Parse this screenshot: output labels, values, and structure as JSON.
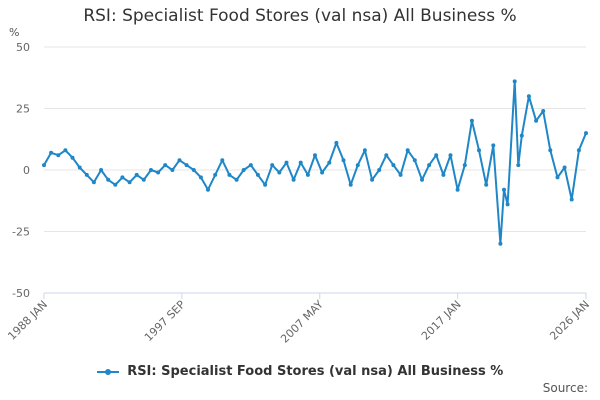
{
  "chart_data": {
    "type": "line",
    "title": "RSI: Specialist Food Stores (val nsa) All Business %",
    "ylabel": "%",
    "xlabel": "",
    "ylim": [
      -50,
      50
    ],
    "yticks": [
      50,
      25,
      0,
      -25,
      -50
    ],
    "xticks": [
      "1988 JAN",
      "1997 SEP",
      "2007 MAY",
      "2017 JAN",
      "2026 JAN"
    ],
    "xlim": [
      "1988 JAN",
      "2026 JAN"
    ],
    "grid": true,
    "legend_position": "bottom",
    "colors": {
      "series": "#1f87c7",
      "grid": "#e6e6e6",
      "axis": "#ccd6eb"
    },
    "series": [
      {
        "name": "RSI: Specialist Food Stores (val nsa) All Business %",
        "x": [
          "1988 JAN",
          "1988 JUL",
          "1989 JAN",
          "1989 JUL",
          "1990 JAN",
          "1990 JUL",
          "1991 JAN",
          "1991 JUL",
          "1992 JAN",
          "1992 JUL",
          "1993 JAN",
          "1993 JUL",
          "1994 JAN",
          "1994 JUL",
          "1995 JAN",
          "1995 JUL",
          "1996 JAN",
          "1996 JUL",
          "1997 JAN",
          "1997 JUL",
          "1998 JAN",
          "1998 JUL",
          "1999 JAN",
          "1999 JUL",
          "2000 JAN",
          "2000 JUL",
          "2001 JAN",
          "2001 JUL",
          "2002 JAN",
          "2002 JUL",
          "2003 JAN",
          "2003 JUL",
          "2004 JAN",
          "2004 JUL",
          "2005 JAN",
          "2005 JUL",
          "2006 JAN",
          "2006 JUL",
          "2007 JAN",
          "2007 JUL",
          "2008 JAN",
          "2008 JUL",
          "2009 JAN",
          "2009 JUL",
          "2010 JAN",
          "2010 JUL",
          "2011 JAN",
          "2011 JUL",
          "2012 JAN",
          "2012 JUL",
          "2013 JAN",
          "2013 JUL",
          "2014 JAN",
          "2014 JUL",
          "2015 JAN",
          "2015 JUL",
          "2016 JAN",
          "2016 JUL",
          "2017 JAN",
          "2017 JUL",
          "2018 JAN",
          "2018 JUL",
          "2019 JAN",
          "2019 JUL",
          "2020 JAN",
          "2020 APR",
          "2020 JUL",
          "2021 JAN",
          "2021 APR",
          "2021 JUL",
          "2022 JAN",
          "2022 JUL",
          "2023 JAN",
          "2023 JUL",
          "2024 JAN",
          "2024 JUL",
          "2025 JAN",
          "2025 JUL",
          "2026 JAN"
        ],
        "values": [
          2,
          7,
          6,
          8,
          5,
          1,
          -2,
          -5,
          0,
          -4,
          -6,
          -3,
          -5,
          -2,
          -4,
          0,
          -1,
          2,
          0,
          4,
          2,
          0,
          -3,
          -8,
          -2,
          4,
          -2,
          -4,
          0,
          2,
          -2,
          -6,
          2,
          -1,
          3,
          -4,
          3,
          -2,
          6,
          -1,
          3,
          11,
          4,
          -6,
          2,
          8,
          -4,
          0,
          6,
          2,
          -2,
          8,
          4,
          -4,
          2,
          6,
          -2,
          6,
          -8,
          2,
          20,
          8,
          -6,
          10,
          -30,
          -8,
          -14,
          36,
          2,
          14,
          30,
          20,
          24,
          8,
          -3,
          1,
          -12,
          8,
          15
        ]
      }
    ]
  },
  "legend": {
    "label": "RSI: Specialist Food Stores (val nsa) All Business %"
  },
  "source": "Source:"
}
